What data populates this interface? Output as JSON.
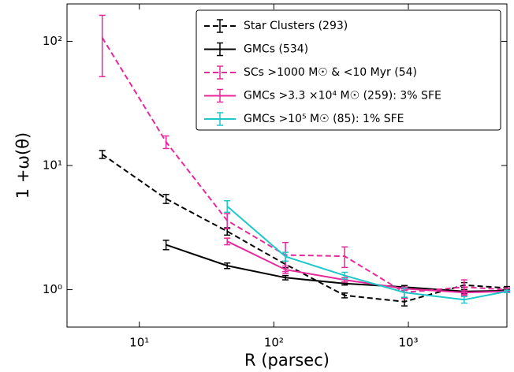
{
  "chart_data": {
    "type": "line",
    "xlabel": "R (parsec)",
    "ylabel": "1 +ω(θ)",
    "xscale": "log",
    "yscale": "log",
    "xlim": [
      2.9,
      5400
    ],
    "ylim": [
      0.5,
      200
    ],
    "xticks": [
      {
        "value": 10,
        "label": "10¹"
      },
      {
        "value": 100,
        "label": "10²"
      },
      {
        "value": 1000,
        "label": "10³"
      }
    ],
    "yticks": [
      {
        "value": 1,
        "label": "10⁰"
      },
      {
        "value": 10,
        "label": "10¹"
      },
      {
        "value": 100,
        "label": "10²"
      }
    ],
    "legend": "upper right",
    "x": [
      5.3,
      15.8,
      45,
      122,
      336,
      935,
      2600,
      5400
    ],
    "series": [
      {
        "name": "Star Clusters (293)",
        "color": "#000000",
        "dashed": true,
        "values": [
          12.3,
          5.4,
          2.95,
          1.6,
          0.9,
          0.8,
          1.09,
          1.03
        ],
        "errors": [
          0.9,
          0.45,
          0.2,
          0.1,
          0.04,
          0.06,
          0.05,
          0.03
        ]
      },
      {
        "name": "GMCs (534)",
        "color": "#000000",
        "dashed": false,
        "values": [
          null,
          2.3,
          1.56,
          1.25,
          1.12,
          1.05,
          0.97,
          0.98
        ],
        "errors": [
          null,
          0.2,
          0.08,
          0.05,
          0.03,
          0.03,
          0.03,
          0.02
        ]
      },
      {
        "name": "SCs >1000 M☉ & <10 Myr (54)",
        "color": "#e8299b",
        "dashed": true,
        "values": [
          107,
          15.5,
          3.6,
          1.9,
          1.86,
          0.95,
          1.05,
          1.0
        ],
        "errors": [
          55,
          1.8,
          0.5,
          0.5,
          0.35,
          0.1,
          0.15,
          0.03
        ]
      },
      {
        "name": "GMCs >3.3 ×10⁴ M☉ (259): 3% SFE",
        "color": "#e8299b",
        "dashed": false,
        "values": [
          null,
          null,
          2.45,
          1.45,
          1.2,
          1.02,
          0.95,
          0.97
        ],
        "errors": [
          null,
          null,
          0.15,
          0.1,
          0.05,
          0.03,
          0.03,
          0.02
        ]
      },
      {
        "name": "GMCs >10⁵ M☉ (85): 1% SFE",
        "color": "#1ec8c8",
        "dashed": false,
        "values": [
          null,
          null,
          4.7,
          1.85,
          1.3,
          0.95,
          0.83,
          0.97
        ],
        "errors": [
          null,
          null,
          0.5,
          0.15,
          0.08,
          0.08,
          0.05,
          0.02
        ]
      }
    ]
  }
}
